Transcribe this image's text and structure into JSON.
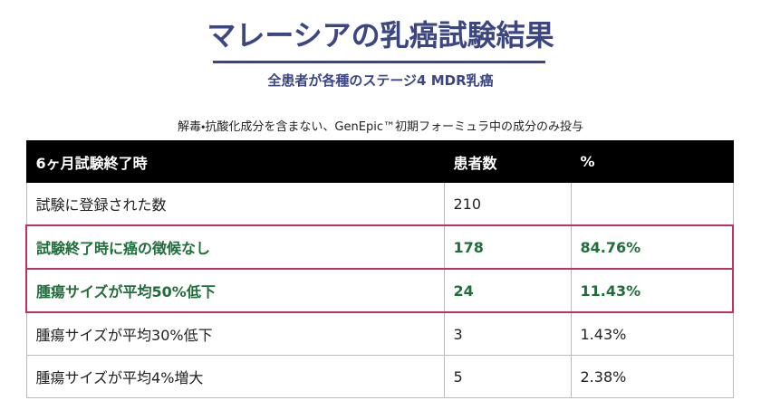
{
  "header": {
    "title": "マレーシアの乳癌試験結果",
    "subtitle": "全患者が各種のステージ4 MDR乳癌",
    "note": "解毒・抗酸化成分を含まない、GenEpic™初期フォーミュラ中の成分のみ投与"
  },
  "table": {
    "columns": [
      "6ヶ月試験終了時",
      "患者数",
      "%"
    ],
    "rows": [
      [
        "試験に登録された数",
        "210",
        ""
      ],
      [
        "試験終了時に癌の徴候なし",
        "178",
        "84.76%"
      ],
      [
        "腫瘍サイズが平均50%低下",
        "24",
        "11.43%"
      ],
      [
        "腫瘍サイズが平均30%低下",
        "3",
        "1.43%"
      ],
      [
        "腫瘍サイズが平均4%増大",
        "5",
        "2.38%"
      ]
    ]
  }
}
